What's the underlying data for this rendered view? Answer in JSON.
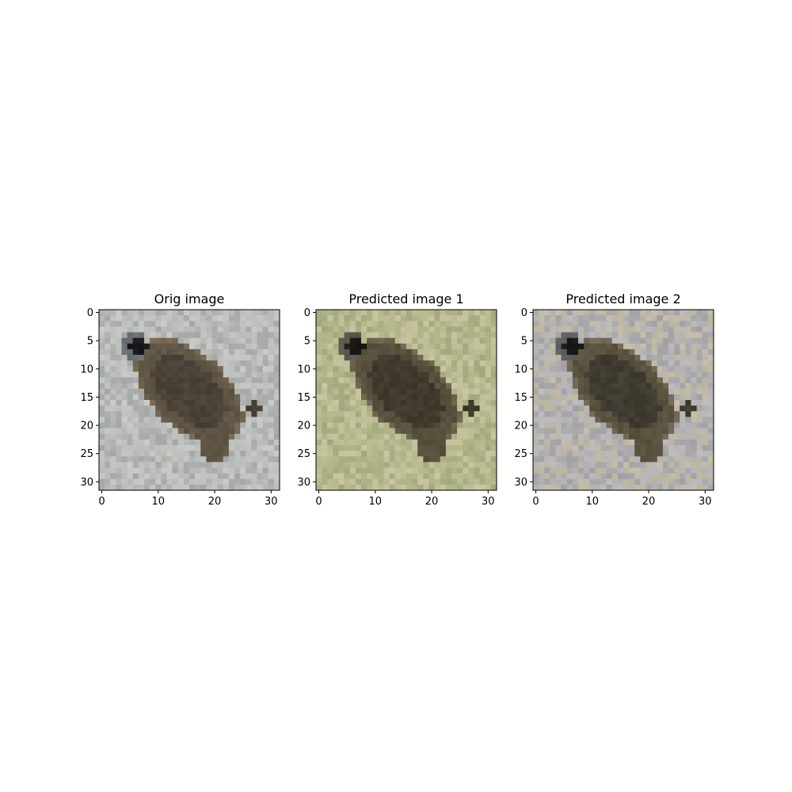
{
  "figure": {
    "panels": [
      {
        "title": "Orig image",
        "palette": {
          "background": "#b9bcb9",
          "background_alt": "#c4c6c2",
          "background_dark": "#a9adac",
          "body_dark": "#4a4236",
          "body_mid": "#5f5544",
          "body_light": "#736550",
          "head_black": "#1a1a1e",
          "head_gray": "#6a6f72",
          "accent": "#8a5a3a"
        }
      },
      {
        "title": "Predicted image 1",
        "palette": {
          "background": "#c3c19c",
          "background_alt": "#b5b88a",
          "background_dark": "#a9ad82",
          "body_dark": "#3f3a2c",
          "body_mid": "#57503d",
          "body_light": "#6e6551",
          "head_black": "#1c1a16",
          "head_gray": "#5c5a4e",
          "accent": "#6e6551"
        }
      },
      {
        "title": "Predicted image 2",
        "palette": {
          "background": "#b7b5b6",
          "background_alt": "#c0b9a6",
          "background_dark": "#a7a6a9",
          "body_dark": "#403c31",
          "body_mid": "#58523f",
          "body_light": "#6f6753",
          "head_black": "#1b1a18",
          "head_gray": "#5e6064",
          "accent": "#6f6753"
        }
      }
    ],
    "axes": {
      "x_ticks": [
        0,
        10,
        20,
        30
      ],
      "y_ticks": [
        0,
        5,
        10,
        15,
        20,
        25,
        30
      ],
      "image_size": 32
    }
  }
}
